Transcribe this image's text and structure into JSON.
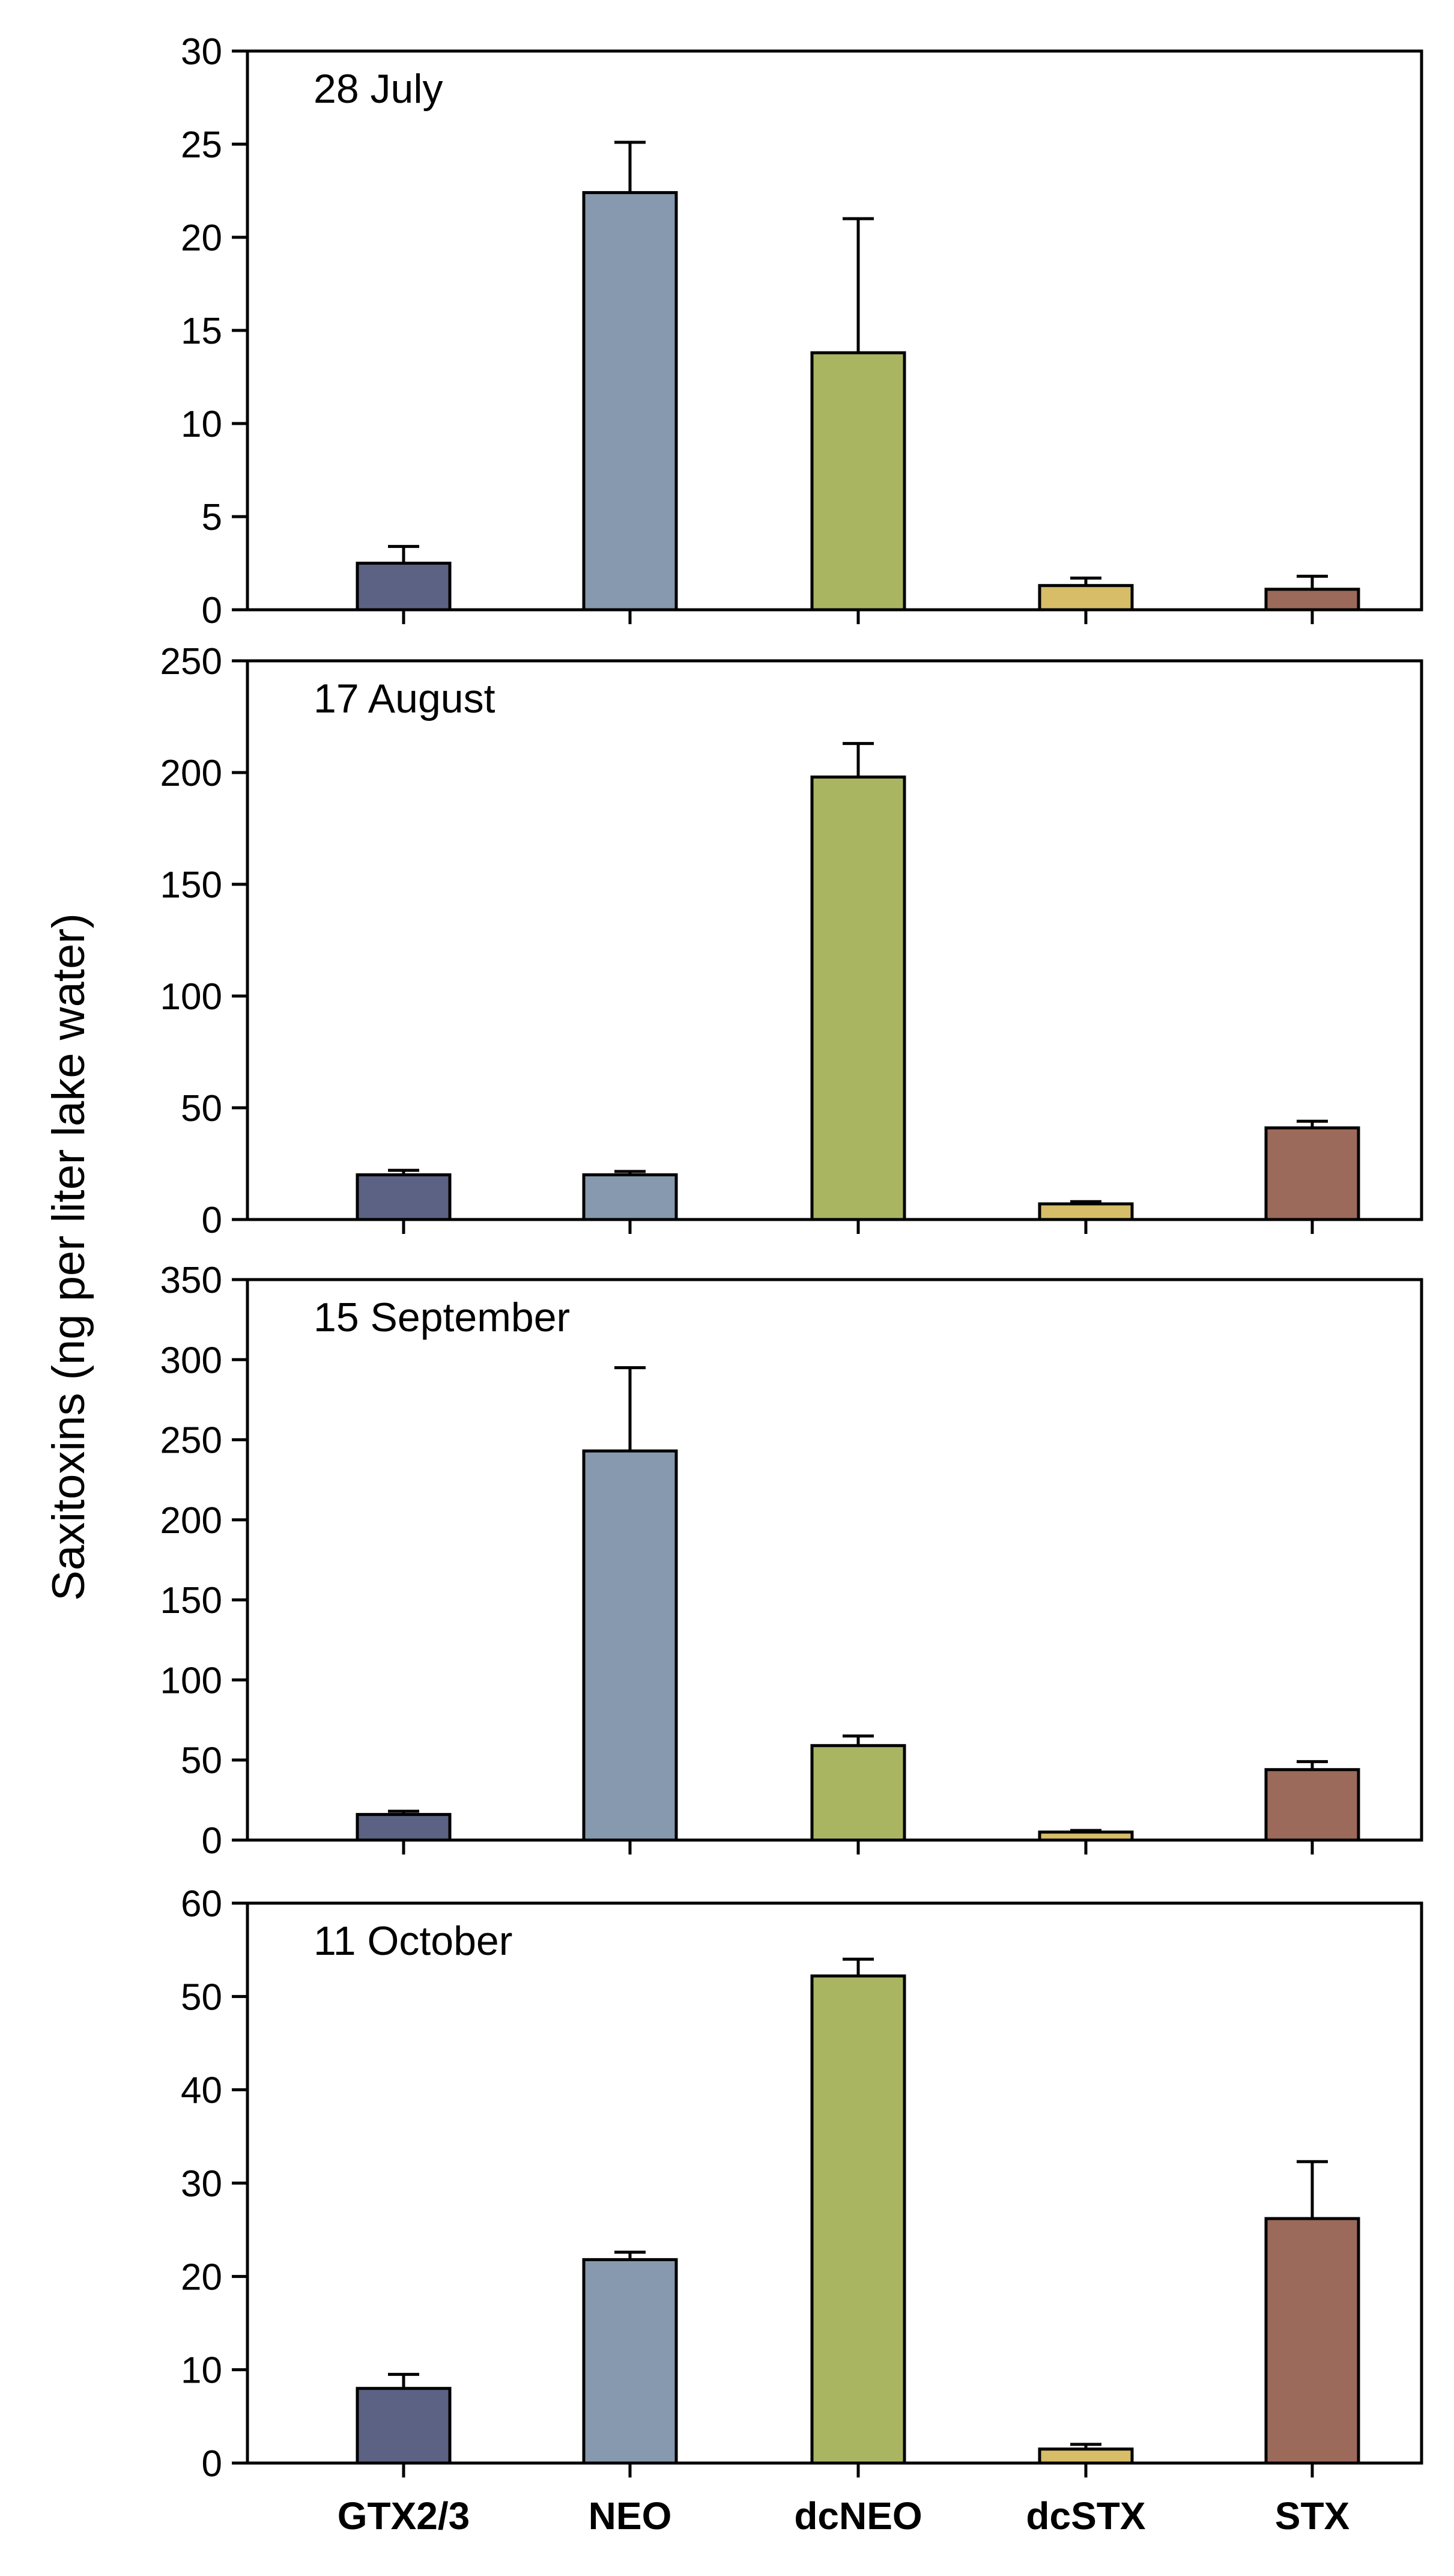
{
  "chart_data": {
    "type": "bar",
    "ylabel": "Saxitoxins (ng per liter lake water)",
    "categories": [
      "GTX2/3",
      "NEO",
      "dcNEO",
      "dcSTX",
      "STX"
    ],
    "colors": [
      "#5b6283",
      "#8699ae",
      "#aab562",
      "#d7bd67",
      "#9b6a5a"
    ],
    "panels": [
      {
        "title": "28 July",
        "ylim": [
          0,
          30
        ],
        "yticks": [
          0,
          5,
          10,
          15,
          20,
          25,
          30
        ],
        "values": [
          2.5,
          22.4,
          13.8,
          1.3,
          1.1
        ],
        "errors": [
          0.9,
          2.7,
          7.2,
          0.4,
          0.7
        ]
      },
      {
        "title": "17 August",
        "ylim": [
          0,
          250
        ],
        "yticks": [
          0,
          50,
          100,
          150,
          200,
          250
        ],
        "values": [
          20,
          20,
          198,
          7,
          41
        ],
        "errors": [
          2,
          1.5,
          15,
          1,
          3
        ]
      },
      {
        "title": "15 September",
        "ylim": [
          0,
          350
        ],
        "yticks": [
          0,
          50,
          100,
          150,
          200,
          250,
          300,
          350
        ],
        "values": [
          16,
          243,
          59,
          5,
          44
        ],
        "errors": [
          2,
          52,
          6,
          1,
          5
        ]
      },
      {
        "title": "11 October",
        "ylim": [
          0,
          60
        ],
        "yticks": [
          0,
          10,
          20,
          30,
          40,
          50,
          60
        ],
        "values": [
          8,
          21.8,
          52.2,
          1.5,
          26.2
        ],
        "errors": [
          1.5,
          0.8,
          1.8,
          0.5,
          6.1
        ]
      }
    ]
  }
}
